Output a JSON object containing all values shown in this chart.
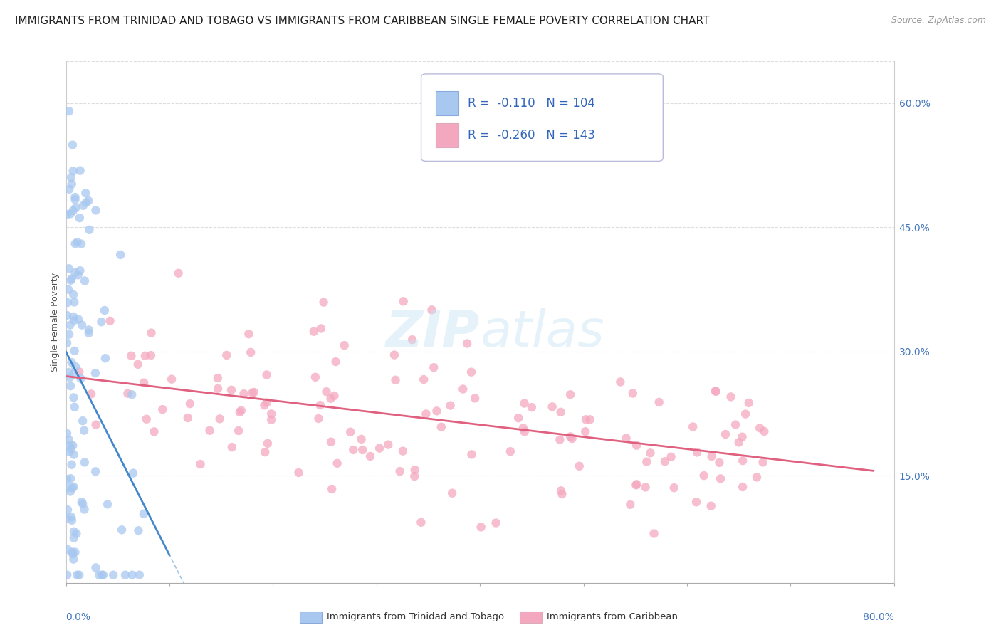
{
  "title": "IMMIGRANTS FROM TRINIDAD AND TOBAGO VS IMMIGRANTS FROM CARIBBEAN SINGLE FEMALE POVERTY CORRELATION CHART",
  "source": "Source: ZipAtlas.com",
  "ylabel": "Single Female Poverty",
  "ytick_labels": [
    "15.0%",
    "30.0%",
    "45.0%",
    "60.0%"
  ],
  "ytick_values": [
    0.15,
    0.3,
    0.45,
    0.6
  ],
  "xmin": 0.0,
  "xmax": 0.8,
  "ymin": 0.02,
  "ymax": 0.65,
  "legend_label1": "Immigrants from Trinidad and Tobago",
  "legend_label2": "Immigrants from Caribbean",
  "r1": -0.11,
  "n1": 104,
  "r2": -0.26,
  "n2": 143,
  "color1": "#A8C8F0",
  "color2": "#F4A8C0",
  "line1_color": "#4488CC",
  "line2_color": "#E06080",
  "watermark": "ZIPatlas",
  "title_fontsize": 11,
  "source_fontsize": 9,
  "axis_label_fontsize": 9,
  "tick_fontsize": 10,
  "legend_fontsize": 12,
  "scatter_size": 80
}
